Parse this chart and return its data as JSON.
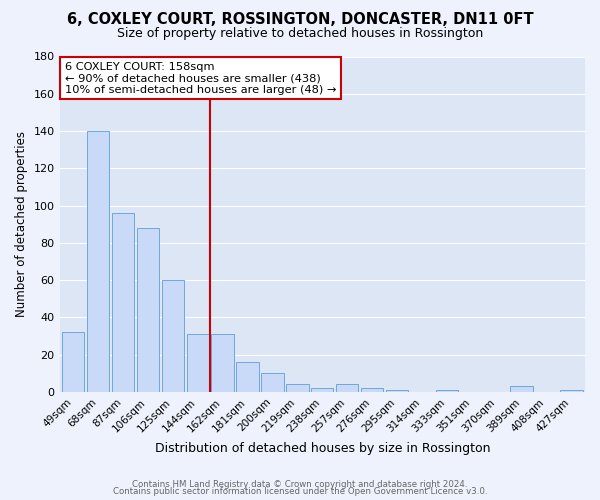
{
  "title": "6, COXLEY COURT, ROSSINGTON, DONCASTER, DN11 0FT",
  "subtitle": "Size of property relative to detached houses in Rossington",
  "xlabel": "Distribution of detached houses by size in Rossington",
  "ylabel": "Number of detached properties",
  "bar_labels": [
    "49sqm",
    "68sqm",
    "87sqm",
    "106sqm",
    "125sqm",
    "144sqm",
    "162sqm",
    "181sqm",
    "200sqm",
    "219sqm",
    "238sqm",
    "257sqm",
    "276sqm",
    "295sqm",
    "314sqm",
    "333sqm",
    "351sqm",
    "370sqm",
    "389sqm",
    "408sqm",
    "427sqm"
  ],
  "bar_values": [
    32,
    140,
    96,
    88,
    60,
    31,
    31,
    16,
    10,
    4,
    2,
    4,
    2,
    1,
    0,
    1,
    0,
    0,
    3,
    0,
    1
  ],
  "bar_color": "#c9daf8",
  "bar_edge_color": "#6fa8dc",
  "vline_x": 5.5,
  "vline_color": "#cc0000",
  "ylim": [
    0,
    180
  ],
  "yticks": [
    0,
    20,
    40,
    60,
    80,
    100,
    120,
    140,
    160,
    180
  ],
  "annotation_title": "6 COXLEY COURT: 158sqm",
  "annotation_line1": "← 90% of detached houses are smaller (438)",
  "annotation_line2": "10% of semi-detached houses are larger (48) →",
  "annotation_box_color": "#ffffff",
  "annotation_box_edge": "#cc0000",
  "footer_line1": "Contains HM Land Registry data © Crown copyright and database right 2024.",
  "footer_line2": "Contains public sector information licensed under the Open Government Licence v3.0.",
  "bg_color": "#edf2fc",
  "plot_bg_color": "#dce6f5",
  "grid_color": "#ffffff"
}
